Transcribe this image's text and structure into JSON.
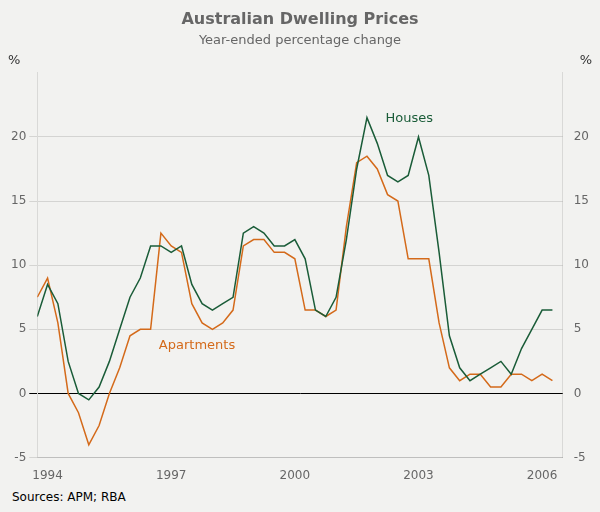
{
  "chart_data": {
    "type": "line",
    "title": "Australian Dwelling Prices",
    "subtitle": "Year-ended percentage change",
    "source": "Sources: APM; RBA",
    "background_color": "#f2f2f0",
    "x": [
      1993.75,
      1994.0,
      1994.25,
      1994.5,
      1994.75,
      1995.0,
      1995.25,
      1995.5,
      1995.75,
      1996.0,
      1996.25,
      1996.5,
      1996.75,
      1997.0,
      1997.25,
      1997.5,
      1997.75,
      1998.0,
      1998.25,
      1998.5,
      1998.75,
      1999.0,
      1999.25,
      1999.5,
      1999.75,
      2000.0,
      2000.25,
      2000.5,
      2000.75,
      2001.0,
      2001.25,
      2001.5,
      2001.75,
      2002.0,
      2002.25,
      2002.5,
      2002.75,
      2003.0,
      2003.25,
      2003.5,
      2003.75,
      2004.0,
      2004.25,
      2004.5,
      2004.75,
      2005.0,
      2005.25,
      2005.5,
      2005.75,
      2006.0,
      2006.25
    ],
    "series": [
      {
        "name": "Houses",
        "color": "#1a5c38",
        "values": [
          6.0,
          8.5,
          7.0,
          2.5,
          0.0,
          -0.5,
          0.5,
          2.5,
          5.0,
          7.5,
          9.0,
          11.5,
          11.5,
          11.0,
          11.5,
          8.5,
          7.0,
          6.5,
          7.0,
          7.5,
          12.5,
          13.0,
          12.5,
          11.5,
          11.5,
          12.0,
          10.5,
          6.5,
          6.0,
          7.5,
          12.0,
          17.5,
          21.5,
          19.5,
          17.0,
          16.5,
          17.0,
          20.0,
          17.0,
          11.0,
          4.5,
          2.0,
          1.0,
          1.5,
          2.0,
          2.5,
          1.5,
          3.5,
          5.0,
          6.5,
          6.5
        ]
      },
      {
        "name": "Apartments",
        "color": "#d46a1a",
        "values": [
          7.5,
          9.0,
          5.5,
          0.0,
          -1.5,
          -4.0,
          -2.5,
          0.0,
          2.0,
          4.5,
          5.0,
          5.0,
          12.5,
          11.5,
          11.0,
          7.0,
          5.5,
          5.0,
          5.5,
          6.5,
          11.5,
          12.0,
          12.0,
          11.0,
          11.0,
          10.5,
          6.5,
          6.5,
          6.0,
          6.5,
          13.0,
          18.0,
          18.5,
          17.5,
          15.5,
          15.0,
          10.5,
          10.5,
          10.5,
          5.5,
          2.0,
          1.0,
          1.5,
          1.5,
          0.5,
          0.5,
          1.5,
          1.5,
          1.0,
          1.5,
          1.0
        ]
      }
    ],
    "xlim": [
      1993.75,
      2006.5
    ],
    "xticks": [
      1994,
      1997,
      2000,
      2003,
      2006
    ],
    "ylim": [
      -5,
      25
    ],
    "yticks": [
      -5,
      0,
      5,
      10,
      15,
      20
    ],
    "y2lim": [
      -5,
      25
    ],
    "y2ticks": [
      -5,
      0,
      5,
      10,
      15,
      20
    ],
    "ylabel": "%",
    "y2label": "%",
    "grid": "y",
    "annotations": [
      {
        "text": "Houses",
        "x": 2002.2,
        "y": 21.2,
        "color": "#1a5c38"
      },
      {
        "text": "Apartments",
        "x": 1996.7,
        "y": 3.5,
        "color": "#d46a1a"
      }
    ]
  }
}
